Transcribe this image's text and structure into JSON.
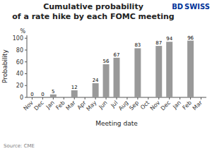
{
  "chart_data": {
    "type": "bar",
    "title": "Cumulative probability",
    "subtitle": "of a rate hike by each FOMC meeting",
    "x_label": "Meeting date",
    "y_label": "Probability",
    "categories": [
      "Nov",
      "Dec",
      "Jan",
      "Feb",
      "Mar",
      "Apr",
      "May",
      "Jun",
      "Jul",
      "Aug",
      "Sep",
      "Oct",
      "Nov",
      "Dec",
      "Jan",
      "Feb",
      "Mar"
    ],
    "values": [
      0,
      0,
      5,
      null,
      12,
      null,
      24,
      56,
      67,
      null,
      83,
      null,
      87,
      94,
      null,
      96,
      null
    ],
    "color": "#999999",
    "data_labels": true,
    "ylim": [
      0,
      105
    ],
    "yticks": [
      0,
      20,
      40,
      60,
      80,
      100
    ],
    "grid": false,
    "annotations": [
      {
        "text": "%"
      },
      {
        "text": "BD",
        "color": "#003399"
      },
      {
        "text": "SWISS",
        "color": "#003399"
      },
      {
        "text": "Source: CME"
      }
    ]
  }
}
